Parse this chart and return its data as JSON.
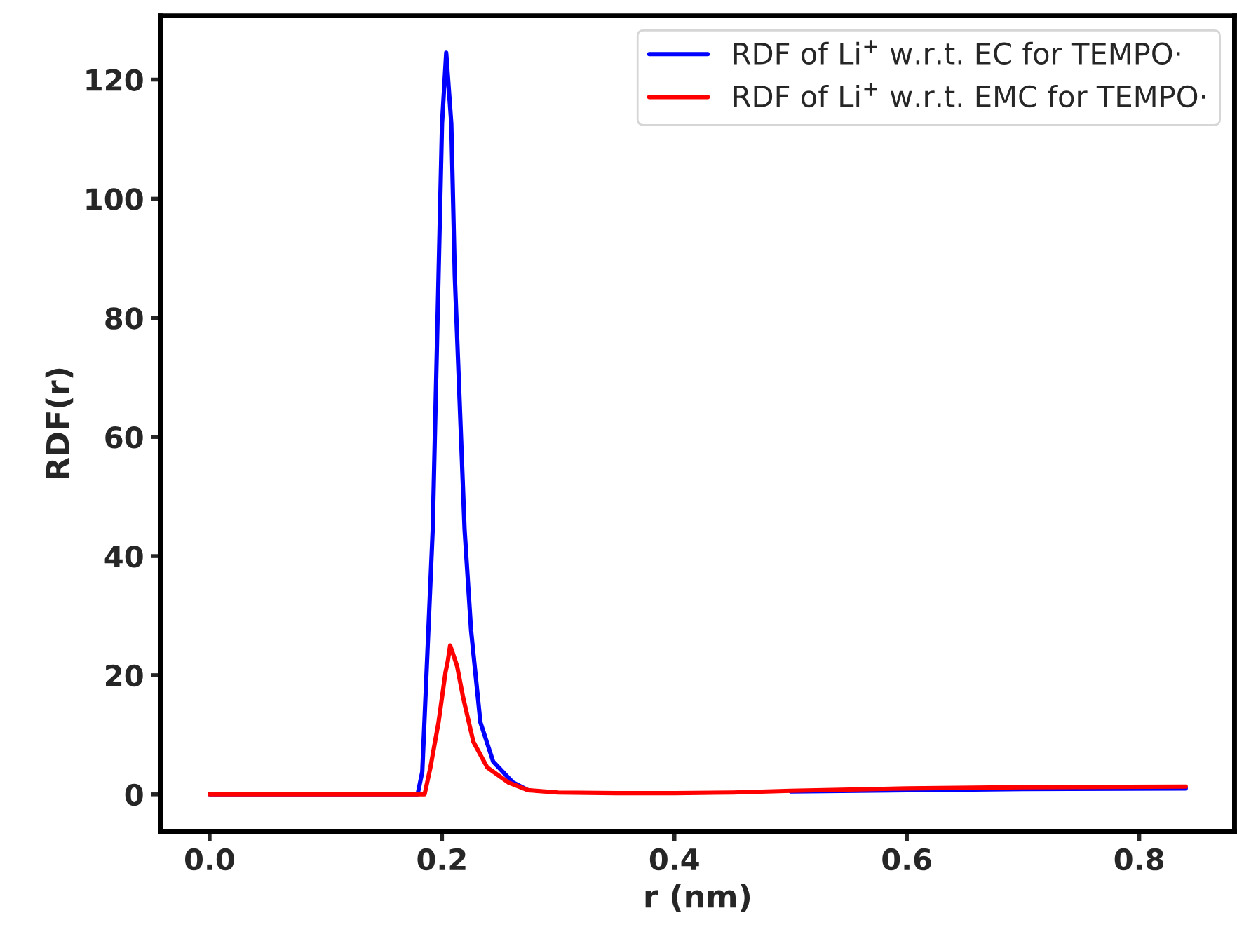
{
  "chart_data": {
    "type": "line",
    "xlabel": "r (nm)",
    "ylabel": "RDF(r)",
    "xlim": [
      -0.042,
      0.882
    ],
    "ylim": [
      -6.2,
      130.7
    ],
    "xticks": [
      {
        "value": 0.0,
        "label": "0.0"
      },
      {
        "value": 0.2,
        "label": "0.2"
      },
      {
        "value": 0.4,
        "label": "0.4"
      },
      {
        "value": 0.6,
        "label": "0.6"
      },
      {
        "value": 0.8,
        "label": "0.8"
      }
    ],
    "yticks": [
      0,
      20,
      40,
      60,
      80,
      100,
      120
    ],
    "grid": false,
    "legend": "top right",
    "marker": "none",
    "line_style": "solid",
    "series": [
      {
        "name": "RDF of Li$^{+}$ w.r.t. EC for TEMPO·",
        "color": "#0000ff",
        "x": [
          0.0,
          0.1,
          0.179,
          0.183,
          0.192,
          0.197,
          0.2,
          0.2036,
          0.208,
          0.211,
          0.2194,
          0.225,
          0.233,
          0.244,
          0.261,
          0.274,
          0.3,
          0.35,
          0.4,
          0.45,
          0.5,
          0.6,
          0.7,
          0.84
        ],
        "values": [
          0,
          0,
          0,
          3.8,
          44.5,
          87,
          112.6,
          124.5,
          112.6,
          87,
          44.5,
          27.5,
          12.1,
          5.5,
          2.0,
          0.7,
          null,
          null,
          null,
          null,
          0.5,
          0.7,
          0.9,
          1.0
        ]
      },
      {
        "name": "RDF of Li$^{+}$ w.r.t. EMC for TEMPO·",
        "color": "#ff0000",
        "x": [
          0.0,
          0.1,
          0.185,
          0.19,
          0.197,
          0.203,
          0.205,
          0.207,
          0.21,
          0.213,
          0.218,
          0.227,
          0.239,
          0.257,
          0.274,
          0.3,
          0.35,
          0.4,
          0.45,
          0.5,
          0.6,
          0.7,
          0.84
        ],
        "values": [
          0,
          0,
          0,
          4.5,
          12.1,
          20.5,
          22.4,
          25,
          23.3,
          21.5,
          16.4,
          8.8,
          4.5,
          2.0,
          0.7,
          0.3,
          0.2,
          0.2,
          0.3,
          0.6,
          1.0,
          1.2,
          1.3
        ]
      }
    ]
  }
}
